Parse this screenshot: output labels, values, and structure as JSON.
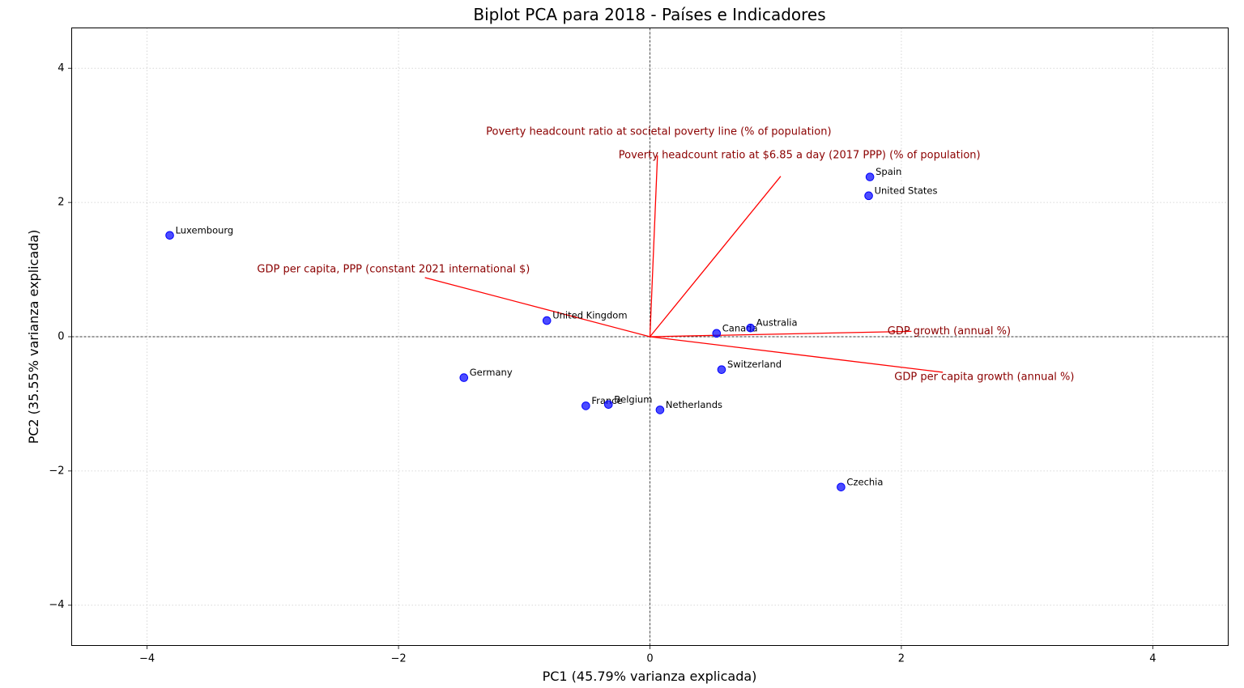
{
  "chart_data": {
    "type": "scatter",
    "subtype": "biplot",
    "title": "Biplot PCA para 2018 - Países e Indicadores",
    "xlabel": "PC1 (45.79% varianza explicada)",
    "ylabel": "PC2 (35.55% varianza explicada)",
    "xlim": [
      -4.6,
      4.6
    ],
    "ylim": [
      -4.6,
      4.6
    ],
    "xticks": [
      -4,
      -2,
      0,
      2,
      4
    ],
    "yticks": [
      -4,
      -2,
      0,
      2,
      4
    ],
    "xtick_labels": [
      "−4",
      "−2",
      "0",
      "2",
      "4"
    ],
    "ytick_labels": [
      "−4",
      "−2",
      "0",
      "2",
      "4"
    ],
    "grid": true,
    "zero_lines": true,
    "colors": {
      "points": "#0000ff",
      "arrows": "#ff0000",
      "loading_text": "#8b0000",
      "grid": "#cccccc"
    },
    "points": [
      {
        "label": "Luxembourg",
        "x": -3.82,
        "y": 1.51
      },
      {
        "label": "United Kingdom",
        "x": -0.82,
        "y": 0.24
      },
      {
        "label": "Germany",
        "x": -1.48,
        "y": -0.61
      },
      {
        "label": "France",
        "x": -0.51,
        "y": -1.03
      },
      {
        "label": "Belgium",
        "x": -0.33,
        "y": -1.01
      },
      {
        "label": "Netherlands",
        "x": 0.08,
        "y": -1.09
      },
      {
        "label": "Canada",
        "x": 0.53,
        "y": 0.05
      },
      {
        "label": "Australia",
        "x": 0.8,
        "y": 0.13
      },
      {
        "label": "Switzerland",
        "x": 0.57,
        "y": -0.49
      },
      {
        "label": "Spain",
        "x": 1.75,
        "y": 2.38
      },
      {
        "label": "United States",
        "x": 1.74,
        "y": 2.1
      },
      {
        "label": "Czechia",
        "x": 1.52,
        "y": -2.24
      }
    ],
    "loadings": [
      {
        "label": "Poverty headcount ratio at societal poverty line (% of population)",
        "x": 0.06,
        "y": 2.7,
        "label_x": 0.07,
        "label_y": 3.05
      },
      {
        "label": "Poverty headcount ratio at $6.85 a day (2017 PPP) (% of population)",
        "x": 1.04,
        "y": 2.39,
        "label_x": 1.19,
        "label_y": 2.7
      },
      {
        "label": "GDP per capita, PPP (constant 2021 international $)",
        "x": -1.79,
        "y": 0.88,
        "label_x": -2.04,
        "label_y": 1.0
      },
      {
        "label": "GDP growth (annual %)",
        "x": 2.08,
        "y": 0.08,
        "label_x": 2.38,
        "label_y": 0.08
      },
      {
        "label": "GDP per capita growth (annual %)",
        "x": 2.33,
        "y": -0.53,
        "label_x": 2.66,
        "label_y": -0.6
      }
    ]
  }
}
